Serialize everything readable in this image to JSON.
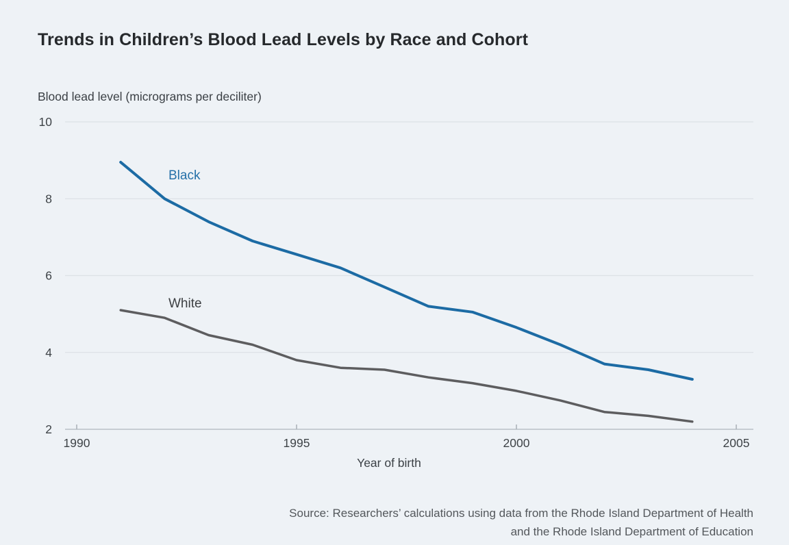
{
  "header": {
    "title": "Trends in Children’s Blood Lead Levels by Race and Cohort"
  },
  "chart_data": {
    "type": "line",
    "title": "Trends in Children’s Blood Lead Levels by Race and Cohort",
    "ylabel": "Blood lead level (micrograms per deciliter)",
    "xlabel": "Year of birth",
    "x": [
      1991,
      1992,
      1993,
      1994,
      1995,
      1996,
      1997,
      1998,
      1999,
      2000,
      2001,
      2002,
      2003,
      2004
    ],
    "series": [
      {
        "name": "Black",
        "color": "#1c6ba4",
        "label_color": "#2470a8",
        "values": [
          8.95,
          8.0,
          7.4,
          6.9,
          6.55,
          6.2,
          5.7,
          5.2,
          5.05,
          4.65,
          4.2,
          3.7,
          3.55,
          3.3
        ]
      },
      {
        "name": "White",
        "color": "#5d5d5f",
        "label_color": "#3c3f42",
        "values": [
          5.1,
          4.9,
          4.45,
          4.2,
          3.8,
          3.6,
          3.55,
          3.35,
          3.2,
          3.0,
          2.75,
          2.45,
          2.35,
          2.2
        ]
      }
    ],
    "xticks": [
      1990,
      1995,
      2000,
      2005
    ],
    "yticks": [
      2,
      4,
      6,
      8,
      10
    ],
    "xlim": [
      1990,
      2005
    ],
    "ylim": [
      2,
      10
    ],
    "grid": "horizontal",
    "legend_position": "inline-labels"
  },
  "source": {
    "line1": "Source: Researchers’ calculations using data from the Rhode Island Department of Health",
    "line2": "and the Rhode Island Department of Education"
  }
}
